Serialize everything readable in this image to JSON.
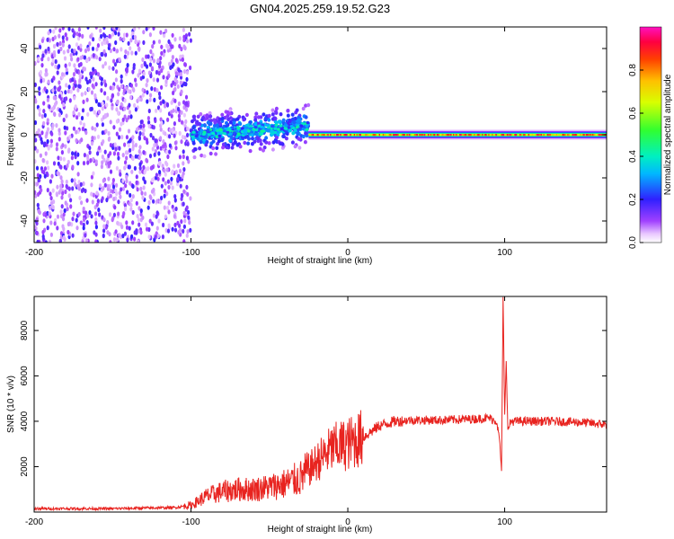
{
  "figure": {
    "title": "GN04.2025.259.19.52.G23"
  },
  "chart_data": [
    {
      "type": "heatmap",
      "xlabel": "Height of straight line (km)",
      "ylabel": "Frequency (Hz)",
      "xlim": [
        -200,
        165
      ],
      "ylim": [
        -50,
        50
      ],
      "xticks": [
        -200,
        -100,
        0,
        100
      ],
      "yticks": [
        -40,
        -20,
        0,
        20,
        40
      ],
      "colorbar": {
        "label": "Normalized spectral amplitude",
        "range": [
          0,
          1
        ],
        "ticks": [
          0.0,
          0.2,
          0.4,
          0.6,
          0.8
        ],
        "colormap": "rainbow (white-violet-blue-cyan-green-yellow-red-magenta)"
      },
      "regions": [
        {
          "x": [
            -200,
            -100
          ],
          "frequency_spread_hz": [
            -50,
            50
          ],
          "amplitude": [
            0.0,
            0.1
          ],
          "description": "broadband noise"
        },
        {
          "x": [
            -100,
            -25
          ],
          "frequency_center_hz": [
            0,
            4
          ],
          "frequency_spread_hz": [
            -10,
            12
          ],
          "amplitude": [
            0.2,
            0.45
          ]
        },
        {
          "x": [
            -25,
            165
          ],
          "frequency_center_hz": 0,
          "amplitude": [
            0.6,
            0.95
          ],
          "description": "narrow stable line"
        }
      ],
      "grid": false,
      "legend": "colorbar right"
    },
    {
      "type": "line",
      "xlabel": "Height of straight line (km)",
      "ylabel": "SNR (10 * v/v)",
      "xlim": [
        -200,
        165
      ],
      "ylim": [
        0,
        9500
      ],
      "xticks": [
        -200,
        -100,
        0,
        100
      ],
      "yticks": [
        2000,
        4000,
        6000,
        8000
      ],
      "color": "#e8231f",
      "series": [
        {
          "x": [
            -200,
            -150,
            -110,
            -100,
            -90,
            -80,
            -70,
            -60,
            -50,
            -40,
            -30,
            -20,
            -10,
            0,
            10,
            20,
            30,
            40,
            60,
            80,
            90,
            95,
            97,
            98,
            99,
            100,
            101,
            102,
            104,
            110,
            130,
            150,
            165
          ],
          "values": [
            150,
            150,
            200,
            300,
            700,
            900,
            1000,
            1000,
            1100,
            1250,
            1500,
            2200,
            2800,
            3000,
            3300,
            3800,
            4000,
            4050,
            4050,
            4100,
            4150,
            4000,
            3000,
            1700,
            9400,
            4200,
            6800,
            3600,
            4000,
            4000,
            4000,
            3950,
            3850
          ]
        }
      ],
      "grid": false
    }
  ]
}
